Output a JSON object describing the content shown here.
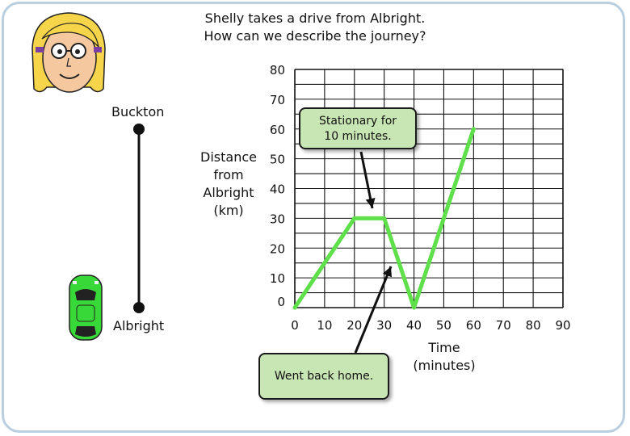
{
  "title": {
    "line1": "Shelly takes a drive from Albright.",
    "line2": "How can we describe the journey?"
  },
  "places": {
    "top": "Buckton",
    "bottom": "Albright"
  },
  "callouts": {
    "stationary_line1": "Stationary for",
    "stationary_line2": "10 minutes.",
    "went_back": "Went back home."
  },
  "chart_data": {
    "type": "line",
    "title": "",
    "ylabel_lines": [
      "Distance",
      "from",
      "Albright",
      "(km)"
    ],
    "xlabel_lines": [
      "Time",
      "(minutes)"
    ],
    "xlim": [
      0,
      90
    ],
    "ylim": [
      0,
      80
    ],
    "x_ticks": [
      0,
      10,
      20,
      30,
      40,
      50,
      60,
      70,
      80,
      90
    ],
    "y_ticks": [
      0,
      10,
      20,
      30,
      40,
      50,
      60,
      70,
      80
    ],
    "grid": true,
    "series": [
      {
        "color": "#5fe04a",
        "x": [
          0,
          20,
          30,
          40,
          60
        ],
        "y": [
          0,
          30,
          30,
          0,
          60
        ]
      }
    ]
  },
  "colors": {
    "line": "#5fe04a",
    "callout_fill": "#c8e6b4",
    "frame": "#b9cfe0",
    "car": "#38d838"
  },
  "icons": {
    "girl": "girl-face-icon",
    "car": "car-icon"
  }
}
